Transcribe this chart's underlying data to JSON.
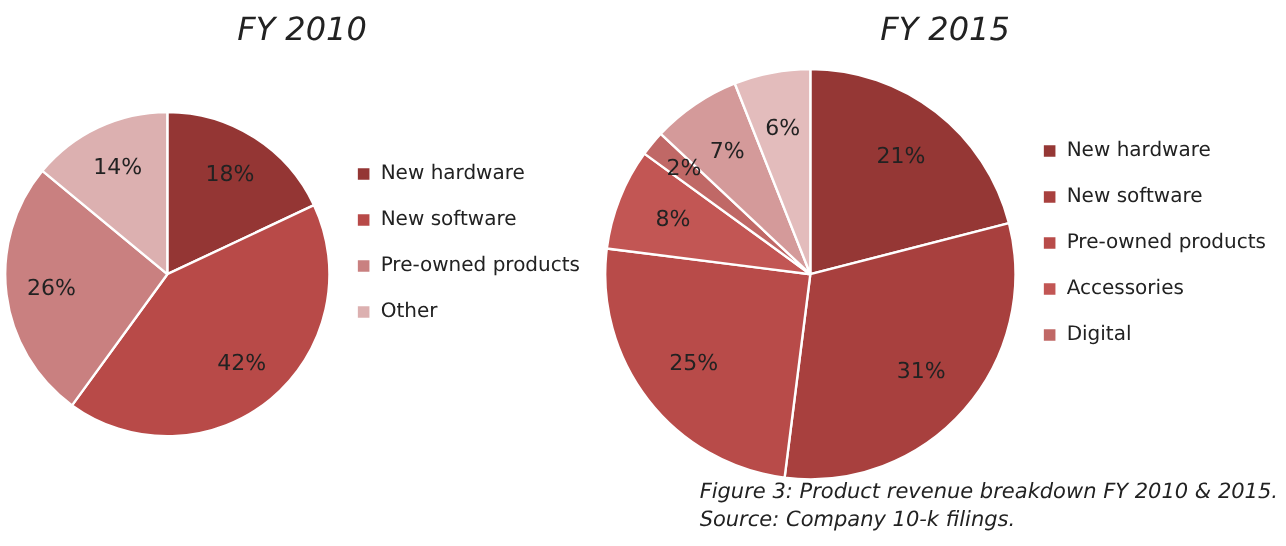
{
  "chart_data": [
    {
      "type": "pie",
      "title": "FY 2010",
      "categories": [
        "New hardware",
        "New software",
        "Pre-owned products",
        "Other"
      ],
      "values": [
        18,
        42,
        26,
        14
      ],
      "value_labels": [
        "18%",
        "42%",
        "26%",
        "14%"
      ],
      "colors": [
        "#943634",
        "#b84a48",
        "#c98080",
        "#dcb0b0"
      ],
      "legend": "right"
    },
    {
      "type": "pie",
      "title": "FY 2015",
      "categories": [
        "New hardware",
        "New software",
        "Pre-owned products",
        "Accessories",
        "Digital",
        null,
        null
      ],
      "values": [
        21,
        31,
        25,
        8,
        2,
        7,
        6
      ],
      "value_labels": [
        "21%",
        "31%",
        "25%",
        "8%",
        "2%",
        "7%",
        "6%"
      ],
      "colors": [
        "#953735",
        "#a8403e",
        "#b84b49",
        "#c25654",
        "#c06866",
        "#d49a9a",
        "#e3bcbc"
      ],
      "legend": "right",
      "annotations": [
        "Figure 3: Product revenue  breakdown FY 2010 & 2015.",
        "Source: Company 10-k filings."
      ]
    }
  ]
}
